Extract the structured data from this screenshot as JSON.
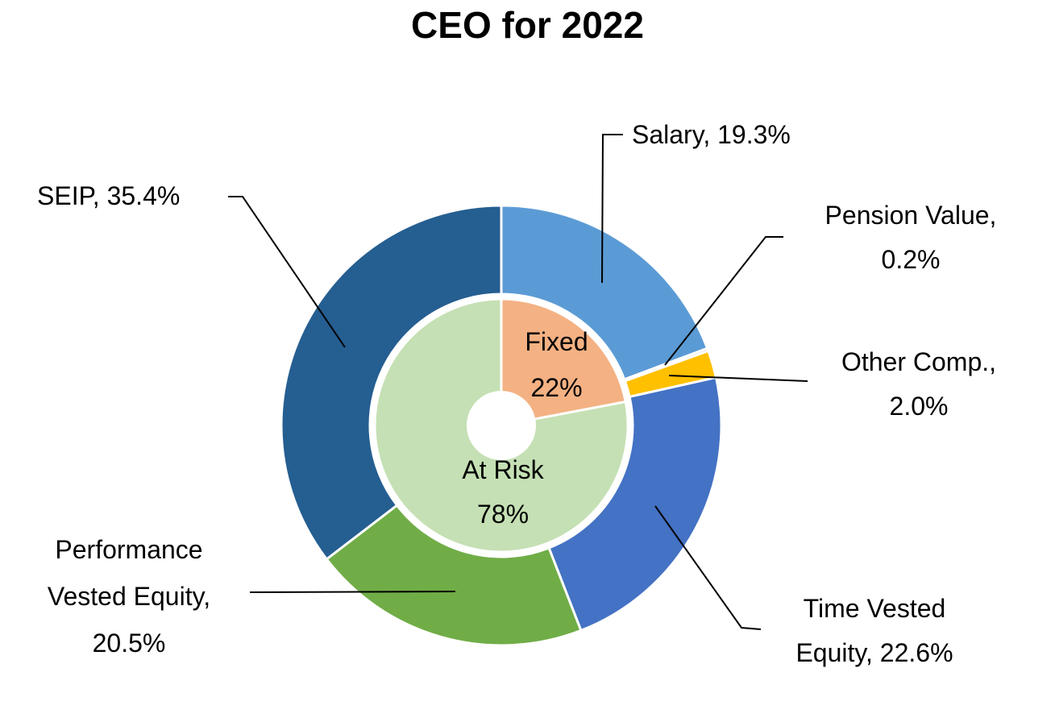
{
  "title": "CEO for 2022",
  "chart_data": {
    "type": "pie",
    "subtype": "donut-with-inner-pie",
    "title": "CEO for 2022",
    "legend_position": "none",
    "grid": false,
    "rings": [
      {
        "name": "outer",
        "series": [
          {
            "label": "Salary",
            "value": 19.3,
            "color": "#5B9BD5"
          },
          {
            "label": "Pension Value",
            "value": 0.2,
            "color": "#A5A5A5"
          },
          {
            "label": "Other Comp.",
            "value": 2.0,
            "color": "#FFC000"
          },
          {
            "label": "Time Vested Equity",
            "value": 22.6,
            "color": "#4472C4"
          },
          {
            "label": "Performance Vested Equity",
            "value": 20.5,
            "color": "#70AD47"
          },
          {
            "label": "SEIP",
            "value": 35.4,
            "color": "#255E91"
          }
        ]
      },
      {
        "name": "inner",
        "series": [
          {
            "label": "Fixed",
            "value": 22,
            "color": "#F4B183"
          },
          {
            "label": "At Risk",
            "value": 78,
            "color": "#C5E0B4"
          }
        ]
      }
    ]
  },
  "callouts": {
    "salary": {
      "lines": [
        "Salary, 19.3%"
      ]
    },
    "pension": {
      "lines": [
        "Pension Value,",
        "0.2%"
      ]
    },
    "other": {
      "lines": [
        "Other Comp.,",
        "2.0%"
      ]
    },
    "tve": {
      "lines": [
        "Time Vested",
        "Equity, 22.6%"
      ]
    },
    "pve": {
      "lines": [
        "Performance",
        "Vested Equity,",
        "20.5%"
      ]
    },
    "seip": {
      "lines": [
        "SEIP, 35.4%"
      ]
    }
  },
  "inner_labels": {
    "fixed": {
      "lines": [
        "Fixed",
        "22%"
      ]
    },
    "at_risk": {
      "lines": [
        "At Risk",
        "78%"
      ]
    }
  },
  "colors": {
    "background": "#FFFFFF",
    "text": "#000000",
    "leader_line": "#000000",
    "slice_border": "#FFFFFF"
  }
}
